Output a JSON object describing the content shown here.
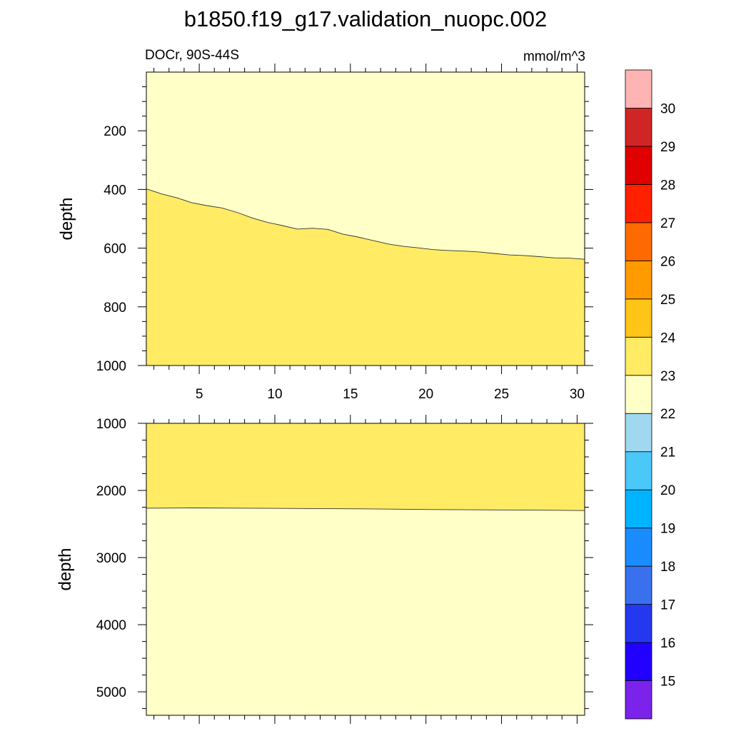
{
  "title": "b1850.f19_g17.validation_nuopc.002",
  "chart_data": {
    "type": "contour",
    "variable_label": "DOCr, 90S-44S",
    "units": "mmol/m^3",
    "colors": {
      "fill_22_23": "#ffffc8",
      "fill_23_24": "#ffeb64",
      "contour_line": "#333333",
      "frame": "#000000"
    },
    "colorbar": {
      "colors": [
        "#7b22eb",
        "#2200ff",
        "#2438f0",
        "#3970ee",
        "#1a8cff",
        "#00b4ff",
        "#4ac8f8",
        "#a0d8f0",
        "#ffffc8",
        "#ffeb64",
        "#ffc418",
        "#ff9a00",
        "#ff6a00",
        "#ff2000",
        "#e00000",
        "#d02525",
        "#ffb4b4"
      ],
      "tick_values": [
        15,
        16,
        17,
        18,
        19,
        20,
        21,
        22,
        23,
        24,
        25,
        26,
        27,
        28,
        29,
        30
      ],
      "tick_labels": [
        "15",
        "16",
        "17",
        "18",
        "19",
        "20",
        "21",
        "22",
        "23",
        "24",
        "25",
        "26",
        "27",
        "28",
        "29",
        "30"
      ]
    },
    "x_axis": {
      "range": [
        1.5,
        30.5
      ],
      "major_ticks": [
        5,
        10,
        15,
        20,
        25,
        30
      ],
      "tick_labels": [
        "5",
        "10",
        "15",
        "20",
        "25",
        "30"
      ],
      "minor_step": 1
    },
    "panels": [
      {
        "name": "upper",
        "ylabel": "depth",
        "y_range": [
          0,
          1000
        ],
        "y_major_ticks": [
          200,
          400,
          600,
          800,
          1000
        ],
        "y_tick_labels": [
          "200",
          "400",
          "600",
          "800",
          "1000"
        ],
        "y_minor_step": 50,
        "show_x_labels": true,
        "fill_above_contour": "22-23",
        "fill_below_contour": "23-24",
        "contour_23": {
          "x": [
            1.5,
            2.5,
            3.5,
            4.5,
            5.5,
            6.5,
            7.5,
            8.5,
            9.5,
            10.5,
            11.5,
            12.5,
            13.5,
            14.5,
            15.5,
            16.5,
            17.5,
            18.5,
            19.5,
            20.5,
            21.5,
            22.5,
            23.5,
            24.5,
            25.5,
            26.5,
            27.5,
            28.5,
            29.5,
            30.5
          ],
          "depth": [
            398,
            415,
            428,
            445,
            455,
            463,
            478,
            497,
            512,
            523,
            535,
            532,
            536,
            552,
            562,
            574,
            586,
            594,
            599,
            605,
            608,
            610,
            613,
            618,
            623,
            625,
            629,
            633,
            634,
            638
          ]
        }
      },
      {
        "name": "lower",
        "ylabel": "depth",
        "y_range": [
          1000,
          5350
        ],
        "y_major_ticks": [
          1000,
          2000,
          3000,
          4000,
          5000
        ],
        "y_tick_labels": [
          "1000",
          "2000",
          "3000",
          "4000",
          "5000"
        ],
        "y_minor_step": 250,
        "show_x_labels": false,
        "fill_above_contour": "23-24",
        "fill_below_contour": "22-23",
        "contour_23": {
          "x": [
            1.5,
            4.5,
            8.5,
            12.5,
            16.5,
            20.5,
            24.5,
            28.5,
            30.5
          ],
          "depth": [
            2265,
            2260,
            2265,
            2270,
            2275,
            2285,
            2290,
            2295,
            2300
          ]
        }
      }
    ]
  }
}
